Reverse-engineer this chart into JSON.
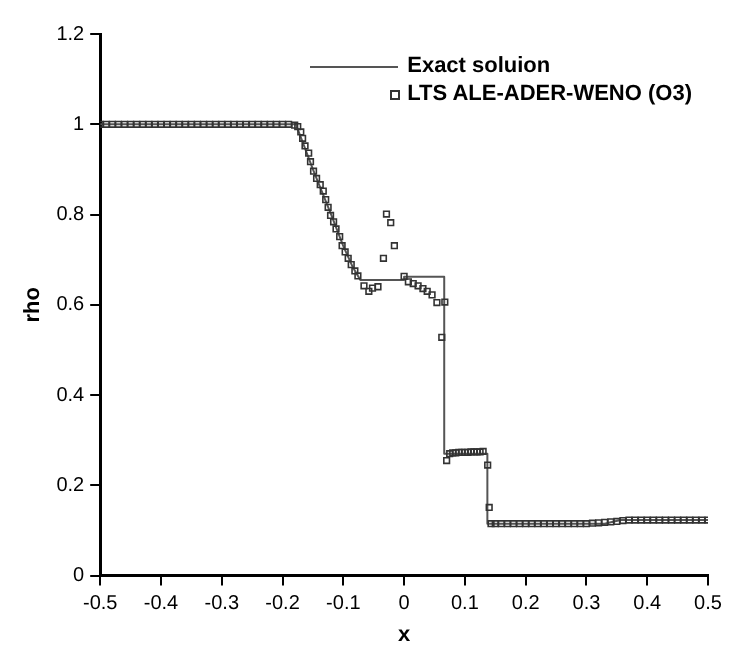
{
  "chart_data": {
    "type": "line",
    "xlabel": "x",
    "ylabel": "rho",
    "xlim": [
      -0.5,
      0.5
    ],
    "xticks": [
      -0.5,
      -0.4,
      -0.3,
      -0.2,
      -0.1,
      0,
      0.1,
      0.2,
      0.3,
      0.4,
      0.5
    ],
    "ylim": [
      0,
      1.2
    ],
    "yticks": [
      0,
      0.2,
      0.4,
      0.6,
      0.8,
      1,
      1.2
    ],
    "grid": false,
    "legend": "top right",
    "series": [
      {
        "name": "Exact soluion",
        "color": "#555555",
        "marker": "none",
        "line_style": "solid",
        "x": [
          -0.5,
          -0.178,
          -0.15,
          -0.12,
          -0.1,
          -0.085,
          -0.072,
          0.0,
          0.0,
          0.066,
          0.066,
          0.137,
          0.137,
          0.33,
          0.356,
          0.5
        ],
        "values": [
          1.0,
          1.0,
          0.9,
          0.8,
          0.73,
          0.685,
          0.655,
          0.655,
          0.662,
          0.662,
          0.27,
          0.27,
          0.115,
          0.115,
          0.123,
          0.123
        ]
      },
      {
        "name": "LTS ALE-ADER-WENO (O3)",
        "type": "scatter",
        "color": "#333333",
        "marker": "square",
        "x": [
          -0.5,
          -0.49,
          -0.48,
          -0.47,
          -0.46,
          -0.45,
          -0.44,
          -0.43,
          -0.42,
          -0.41,
          -0.4,
          -0.39,
          -0.38,
          -0.37,
          -0.36,
          -0.35,
          -0.34,
          -0.33,
          -0.32,
          -0.31,
          -0.3,
          -0.29,
          -0.28,
          -0.27,
          -0.26,
          -0.25,
          -0.24,
          -0.23,
          -0.22,
          -0.21,
          -0.2,
          -0.19,
          -0.18,
          -0.175,
          -0.17,
          -0.167,
          -0.163,
          -0.157,
          -0.154,
          -0.149,
          -0.144,
          -0.138,
          -0.133,
          -0.129,
          -0.125,
          -0.121,
          -0.116,
          -0.112,
          -0.106,
          -0.102,
          -0.097,
          -0.092,
          -0.087,
          -0.081,
          -0.076,
          -0.066,
          -0.058,
          -0.052,
          -0.043,
          -0.034,
          -0.029,
          -0.022,
          -0.016,
          0.0,
          0.007,
          0.015,
          0.023,
          0.031,
          0.038,
          0.046,
          0.054,
          0.062,
          0.067,
          0.07,
          0.075,
          0.08,
          0.085,
          0.09,
          0.095,
          0.1,
          0.105,
          0.11,
          0.115,
          0.12,
          0.125,
          0.13,
          0.1375,
          0.14,
          0.143,
          0.15,
          0.16,
          0.17,
          0.18,
          0.19,
          0.2,
          0.21,
          0.22,
          0.23,
          0.24,
          0.25,
          0.26,
          0.27,
          0.28,
          0.29,
          0.3,
          0.31,
          0.32,
          0.33,
          0.34,
          0.35,
          0.36,
          0.37,
          0.38,
          0.39,
          0.4,
          0.41,
          0.42,
          0.43,
          0.44,
          0.45,
          0.46,
          0.47,
          0.48,
          0.49,
          0.5
        ],
        "values": [
          1.0,
          1.0,
          1.0,
          1.0,
          1.0,
          1.0,
          1.0,
          1.0,
          1.0,
          1.0,
          1.0,
          1.0,
          1.0,
          1.0,
          1.0,
          1.0,
          1.0,
          1.0,
          1.0,
          1.0,
          1.0,
          1.0,
          1.0,
          1.0,
          1.0,
          1.0,
          1.0,
          1.0,
          1.0,
          1.0,
          1.0,
          1.0,
          0.998,
          0.995,
          0.983,
          0.969,
          0.952,
          0.936,
          0.917,
          0.896,
          0.88,
          0.866,
          0.852,
          0.833,
          0.816,
          0.798,
          0.784,
          0.768,
          0.751,
          0.731,
          0.717,
          0.703,
          0.689,
          0.675,
          0.664,
          0.642,
          0.63,
          0.637,
          0.64,
          0.703,
          0.801,
          0.782,
          0.731,
          0.663,
          0.651,
          0.647,
          0.642,
          0.636,
          0.63,
          0.622,
          0.605,
          0.528,
          0.606,
          0.255,
          0.27,
          0.272,
          0.272,
          0.273,
          0.273,
          0.273,
          0.273,
          0.274,
          0.274,
          0.274,
          0.274,
          0.275,
          0.245,
          0.151,
          0.115,
          0.115,
          0.115,
          0.115,
          0.115,
          0.115,
          0.115,
          0.115,
          0.115,
          0.115,
          0.115,
          0.115,
          0.115,
          0.115,
          0.115,
          0.115,
          0.115,
          0.116,
          0.117,
          0.118,
          0.119,
          0.12,
          0.122,
          0.123,
          0.123,
          0.123,
          0.123,
          0.123,
          0.123,
          0.123,
          0.123,
          0.123,
          0.123,
          0.123,
          0.123,
          0.123,
          0.123
        ]
      }
    ]
  }
}
